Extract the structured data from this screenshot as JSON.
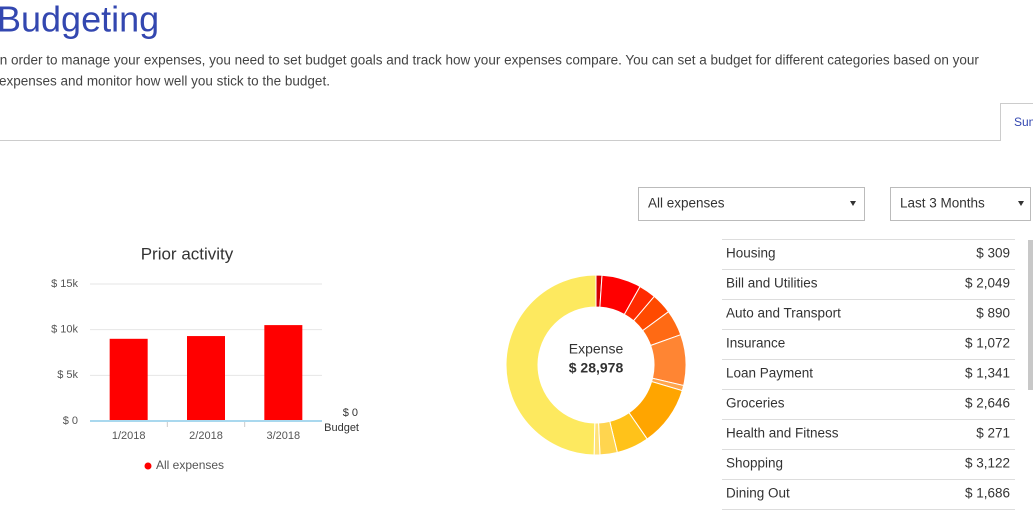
{
  "header": {
    "title": "Budgeting",
    "description": [
      "In order to manage your expenses, you need to set budget goals and track how your expenses compare. You can set a budget for different categories based on your",
      "expenses and monitor how well you stick to the budget."
    ]
  },
  "tabs": [
    "Summary"
  ],
  "filters": [
    "All expenses",
    "Last 3 Months"
  ],
  "chart_data": [
    {
      "type": "bar",
      "title": "Prior activity",
      "categories": [
        "1/2018",
        "2/2018",
        "3/2018"
      ],
      "series": [
        {
          "name": "All expenses",
          "color": "#ff0000",
          "values": [
            9000,
            9300,
            10500
          ]
        }
      ],
      "budget": {
        "name": "Budget",
        "value": 0,
        "value_label": "$ 0",
        "color": "#a9d8ee"
      },
      "ylim": [
        0,
        15000
      ],
      "yticks": [
        {
          "value": 0,
          "label": "$ 0"
        },
        {
          "value": 5000,
          "label": "$ 5k"
        },
        {
          "value": 10000,
          "label": "$ 10k"
        },
        {
          "value": 15000,
          "label": "$ 15k"
        }
      ],
      "grid": true
    },
    {
      "type": "donut",
      "center_label": "Expense",
      "total_label": "$ 28,978",
      "categories": [
        "Housing",
        "Bill and Utilities",
        "Auto and Transport",
        "Insurance",
        "Loan Payment",
        "Groceries",
        "Health and Fitness",
        "Shopping",
        "Dining Out",
        null,
        null,
        null
      ],
      "values": [
        309,
        2049,
        890,
        1072,
        1341,
        2646,
        271,
        3122,
        1686,
        900,
        300,
        14392
      ],
      "value_labels": [
        "$ 309",
        "$ 2,049",
        "$ 890",
        "$ 1,072",
        "$ 1,341",
        "$ 2,646",
        "$ 271",
        "$ 3,122",
        "$ 1,686",
        null,
        null,
        null
      ],
      "colors": [
        "#d40000",
        "#ff0000",
        "#ff2b00",
        "#ff4a00",
        "#ff6a14",
        "#ff8533",
        "#ffa64d",
        "#ffa500",
        "#ffc21a",
        "#ffd54f",
        "#ffe27a",
        "#fde95f"
      ]
    }
  ]
}
